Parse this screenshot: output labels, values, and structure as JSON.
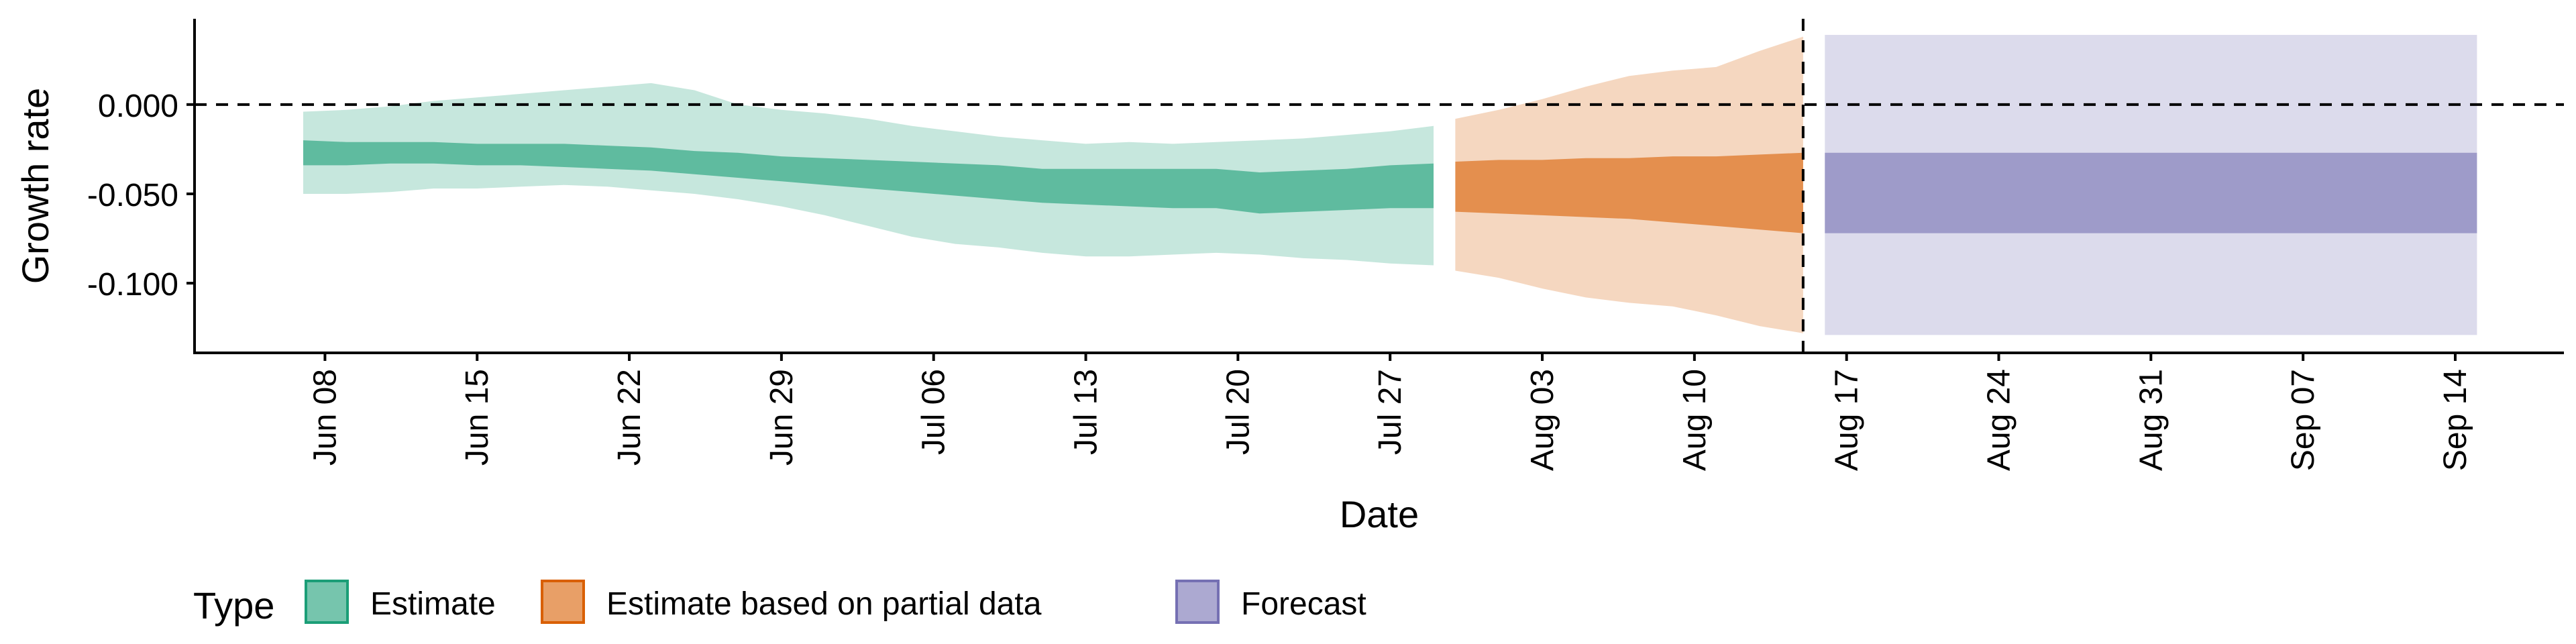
{
  "chart_data": {
    "type": "area",
    "xlabel": "Date",
    "ylabel": "Growth rate",
    "xlim": [
      "2020-06-02",
      "2020-09-19"
    ],
    "ylim": [
      -0.139,
      0.048
    ],
    "yticks": [
      0.0,
      -0.05,
      -0.1
    ],
    "ytick_labels": [
      "0.000",
      "-0.050",
      "-0.100"
    ],
    "xticks": [
      "2020-06-08",
      "2020-06-15",
      "2020-06-22",
      "2020-06-29",
      "2020-07-06",
      "2020-07-13",
      "2020-07-20",
      "2020-07-27",
      "2020-08-03",
      "2020-08-10",
      "2020-08-17",
      "2020-08-24",
      "2020-08-31",
      "2020-09-07",
      "2020-09-14"
    ],
    "xtick_labels": [
      "Jun 08",
      "Jun 15",
      "Jun 22",
      "Jun 29",
      "Jul 06",
      "Jul 13",
      "Jul 20",
      "Jul 27",
      "Aug 03",
      "Aug 10",
      "Aug 17",
      "Aug 24",
      "Aug 31",
      "Sep 07",
      "Sep 14"
    ],
    "hline": 0.0,
    "vline": "2020-08-15",
    "legend_title": "Type",
    "legend_position": "bottom",
    "series": [
      {
        "name": "Estimate",
        "color": "#1b9e77",
        "dates": [
          "2020-06-07",
          "2020-06-09",
          "2020-06-11",
          "2020-06-13",
          "2020-06-15",
          "2020-06-17",
          "2020-06-19",
          "2020-06-21",
          "2020-06-23",
          "2020-06-25",
          "2020-06-27",
          "2020-06-29",
          "2020-07-01",
          "2020-07-03",
          "2020-07-05",
          "2020-07-07",
          "2020-07-09",
          "2020-07-11",
          "2020-07-13",
          "2020-07-15",
          "2020-07-17",
          "2020-07-19",
          "2020-07-21",
          "2020-07-23",
          "2020-07-25",
          "2020-07-27",
          "2020-07-29"
        ],
        "lower_90": [
          -0.05,
          -0.05,
          -0.049,
          -0.047,
          -0.047,
          -0.046,
          -0.045,
          -0.046,
          -0.048,
          -0.05,
          -0.053,
          -0.057,
          -0.062,
          -0.068,
          -0.074,
          -0.078,
          -0.08,
          -0.083,
          -0.085,
          -0.085,
          -0.084,
          -0.083,
          -0.084,
          -0.086,
          -0.087,
          -0.089,
          -0.09
        ],
        "upper_90": [
          -0.004,
          -0.003,
          -0.001,
          0.002,
          0.004,
          0.006,
          0.008,
          0.01,
          0.012,
          0.008,
          0.0,
          -0.003,
          -0.005,
          -0.008,
          -0.012,
          -0.015,
          -0.018,
          -0.02,
          -0.022,
          -0.021,
          -0.022,
          -0.021,
          -0.02,
          -0.019,
          -0.017,
          -0.015,
          -0.012
        ],
        "lower_50": [
          -0.034,
          -0.034,
          -0.033,
          -0.033,
          -0.034,
          -0.034,
          -0.035,
          -0.036,
          -0.037,
          -0.039,
          -0.041,
          -0.043,
          -0.045,
          -0.047,
          -0.049,
          -0.051,
          -0.053,
          -0.055,
          -0.056,
          -0.057,
          -0.058,
          -0.058,
          -0.061,
          -0.06,
          -0.059,
          -0.058,
          -0.058
        ],
        "upper_50": [
          -0.02,
          -0.021,
          -0.021,
          -0.021,
          -0.022,
          -0.022,
          -0.022,
          -0.023,
          -0.024,
          -0.026,
          -0.027,
          -0.029,
          -0.03,
          -0.031,
          -0.032,
          -0.033,
          -0.034,
          -0.036,
          -0.036,
          -0.036,
          -0.036,
          -0.036,
          -0.038,
          -0.037,
          -0.036,
          -0.034,
          -0.033
        ]
      },
      {
        "name": "Estimate based on partial data",
        "color": "#d95f02",
        "dates": [
          "2020-07-30",
          "2020-08-01",
          "2020-08-03",
          "2020-08-05",
          "2020-08-07",
          "2020-08-09",
          "2020-08-11",
          "2020-08-13",
          "2020-08-15"
        ],
        "lower_90": [
          -0.093,
          -0.097,
          -0.103,
          -0.108,
          -0.111,
          -0.113,
          -0.118,
          -0.124,
          -0.128
        ],
        "upper_90": [
          -0.008,
          -0.003,
          0.003,
          0.01,
          0.016,
          0.019,
          0.021,
          0.03,
          0.038
        ],
        "lower_50": [
          -0.06,
          -0.061,
          -0.062,
          -0.063,
          -0.064,
          -0.066,
          -0.068,
          -0.07,
          -0.072
        ],
        "upper_50": [
          -0.032,
          -0.031,
          -0.031,
          -0.03,
          -0.03,
          -0.029,
          -0.029,
          -0.028,
          -0.027
        ]
      },
      {
        "name": "Forecast",
        "color": "#7570b3",
        "dates": [
          "2020-08-16",
          "2020-09-15"
        ],
        "lower_90": [
          -0.129,
          -0.129
        ],
        "upper_90": [
          0.039,
          0.039
        ],
        "lower_50": [
          -0.072,
          -0.072
        ],
        "upper_50": [
          -0.027,
          -0.027
        ]
      }
    ]
  }
}
